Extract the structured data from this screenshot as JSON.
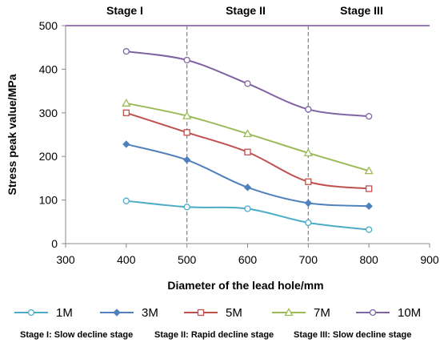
{
  "chart_data": {
    "type": "line",
    "title": "",
    "xlabel": "Diameter of the lead hole/mm",
    "ylabel": "Stress peak value/MPa",
    "xlim": [
      300,
      900
    ],
    "ylim": [
      0,
      500
    ],
    "x_ticks": [
      "300",
      "400",
      "500",
      "600",
      "700",
      "800",
      "900"
    ],
    "y_ticks": [
      "0",
      "100",
      "200",
      "300",
      "400",
      "500"
    ],
    "x": [
      400,
      500,
      600,
      700,
      800
    ],
    "series": [
      {
        "name": "1M",
        "color": "#4BACC6",
        "marker": "circle",
        "values": [
          98,
          84,
          80,
          48,
          32
        ]
      },
      {
        "name": "3M",
        "color": "#4F81BD",
        "marker": "diamond",
        "values": [
          228,
          192,
          129,
          93,
          86
        ]
      },
      {
        "name": "5M",
        "color": "#C0504D",
        "marker": "square",
        "values": [
          300,
          255,
          210,
          142,
          126
        ]
      },
      {
        "name": "7M",
        "color": "#9BBB59",
        "marker": "triangle",
        "values": [
          322,
          293,
          252,
          208,
          167
        ]
      },
      {
        "name": "10M",
        "color": "#8064A2",
        "marker": "circle",
        "values": [
          441,
          421,
          367,
          308,
          292
        ]
      }
    ],
    "stage_dividers": [
      500,
      700
    ],
    "stages": [
      "Stage I",
      "Stage II",
      "Stage III"
    ],
    "stage_notes": [
      "Stage I: Slow decline stage",
      "Stage II: Rapid decline stage",
      "Stage III: Slow decline stage"
    ],
    "grid": false,
    "legend_position": "bottom"
  }
}
